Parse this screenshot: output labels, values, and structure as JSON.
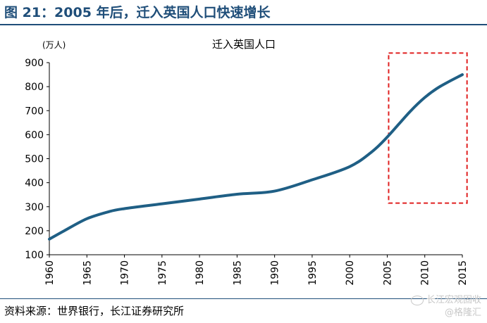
{
  "figure": {
    "title": "图 21：2005 年后，迁入英国人口快速增长",
    "source": "资料来源：世界银行，长江证券研究所"
  },
  "watermark": {
    "line1": "长江宏观固收",
    "line2": "@格隆汇"
  },
  "colors": {
    "line": "#1f5f85",
    "title": "#1f4e79",
    "highlight_box": "#e02020"
  },
  "chart_data": {
    "type": "line",
    "title": "迁入英国人口",
    "unit_label": "(万人)",
    "ylim": [
      100,
      900
    ],
    "yticks": [
      100,
      200,
      300,
      400,
      500,
      600,
      700,
      800,
      900
    ],
    "xlim": [
      1960,
      2015
    ],
    "xticks": [
      "1960",
      "1965",
      "1970",
      "1975",
      "1980",
      "1985",
      "1990",
      "1995",
      "2000",
      "2005",
      "2010",
      "2015"
    ],
    "grid": false,
    "highlight": {
      "x_range": [
        2005,
        2016
      ],
      "y_range": [
        315,
        940
      ]
    },
    "series": [
      {
        "x": [
          1960,
          1962,
          1965,
          1968,
          1970,
          1975,
          1980,
          1985,
          1990,
          1995,
          2000,
          2003,
          2005,
          2008,
          2010,
          2012,
          2015
        ],
        "values": [
          165,
          200,
          250,
          280,
          292,
          312,
          332,
          352,
          365,
          412,
          467,
          530,
          590,
          695,
          755,
          800,
          850
        ]
      }
    ]
  }
}
